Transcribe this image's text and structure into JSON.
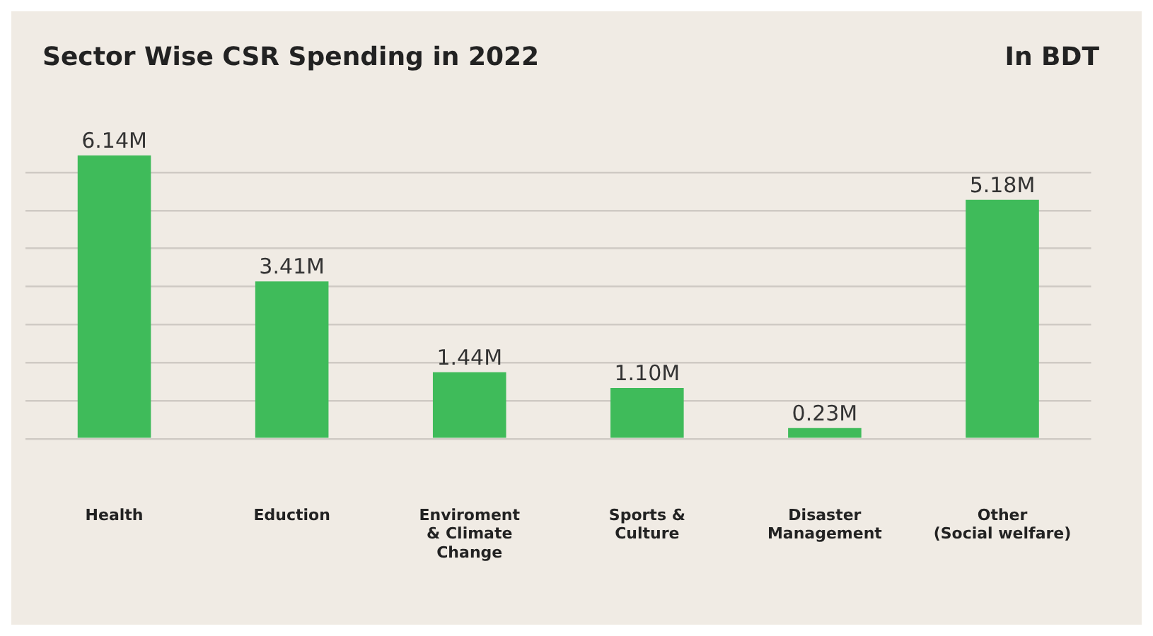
{
  "chart_data": {
    "type": "bar",
    "title": "Sector Wise CSR Spending in 2022",
    "annotations": [
      "In BDT"
    ],
    "categories": [
      "Health",
      "Eduction",
      "Enviroment\n& Climate\nChange",
      "Sports &\nCulture",
      "Disaster\nManagement",
      "Other\n(Social welfare)"
    ],
    "values": [
      6.14,
      3.41,
      1.44,
      1.1,
      0.23,
      5.18
    ],
    "value_labels": [
      "6.14M",
      "3.41M",
      "1.44M",
      "1.10M",
      "0.23M",
      "5.18M"
    ],
    "color": "#3fbb5a",
    "yticks": [
      {
        "value": 0,
        "label": null
      },
      {
        "value": 0.825,
        "label": null
      },
      {
        "value": 1.65,
        "label": null
      },
      {
        "value": 2.475,
        "label": null
      },
      {
        "value": 3.3,
        "label": null
      },
      {
        "value": 4.125,
        "label": null
      },
      {
        "value": 4.95,
        "label": null
      },
      {
        "value": 5.775,
        "label": null
      }
    ],
    "grid": "y",
    "tick_labels": "x",
    "legend": false
  }
}
